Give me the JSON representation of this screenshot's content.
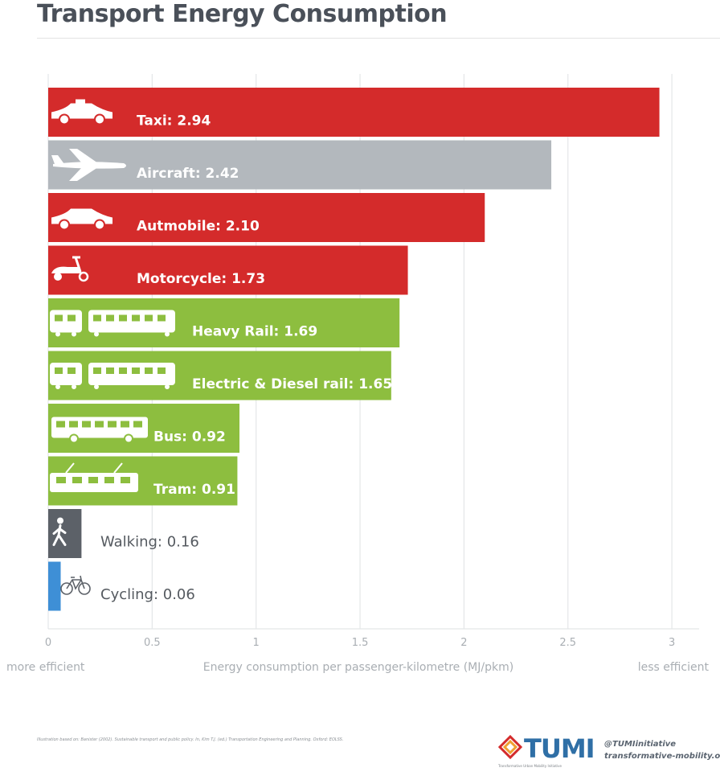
{
  "title": "Transport Energy Consumption",
  "colors": {
    "red": "#d42b2b",
    "grey": "#b3b8bd",
    "green": "#8dbe3f",
    "dark_grey": "#5c6168",
    "blue": "#3e8fd6"
  },
  "chart_data": {
    "type": "bar",
    "orientation": "horizontal",
    "categories": [
      "Taxi",
      "Aircraft",
      "Autmobile",
      "Motorcycle",
      "Heavy Rail",
      "Electric & Diesel rail",
      "Bus",
      "Tram",
      "Walking",
      "Cycling"
    ],
    "values": [
      2.94,
      2.42,
      2.1,
      1.73,
      1.69,
      1.65,
      0.92,
      0.91,
      0.16,
      0.06
    ],
    "data_labels": [
      "Taxi: 2.94",
      "Aircraft: 2.42",
      "Autmobile: 2.10",
      "Motorcycle: 1.73",
      "Heavy Rail: 1.69",
      "Electric & Diesel rail: 1.65",
      "Bus: 0.92",
      "Tram: 0.91",
      "Walking: 0.16",
      "Cycling: 0.06"
    ],
    "bar_colors": [
      "red",
      "grey",
      "red",
      "red",
      "green",
      "green",
      "green",
      "green",
      "dark_grey",
      "blue"
    ],
    "icons": [
      "taxi-icon",
      "aircraft-icon",
      "car-icon",
      "scooter-icon",
      "heavy-rail-icon",
      "train-icon",
      "bus-icon",
      "tram-icon",
      "walking-icon",
      "bicycle-icon"
    ],
    "xlabel": "Energy consumption per passenger-kilometre (MJ/pkm)",
    "xlim": [
      0,
      3
    ],
    "xticks": [
      "0",
      "0.5",
      "1",
      "1.5",
      "2",
      "2.5",
      "3"
    ],
    "left_note": "more efficient",
    "right_note": "less efficient",
    "grid": "vertical"
  },
  "footer": {
    "attribution": "Illustration based on: Banister (2002). Sustainable transport and public policy. In, Kim T.J. (ed.) Transportation Engineering and Planning. Oxford: EOLSS.",
    "logo_text": "TUMI",
    "logo_sub": "Transformative Urban Mobility Initiative",
    "handle": "@TUMIinitiative",
    "website": "transformative-mobility.org"
  }
}
